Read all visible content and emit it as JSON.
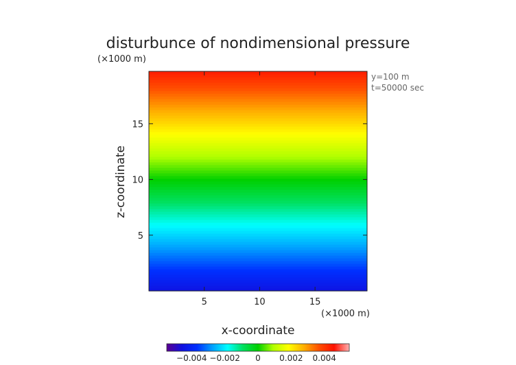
{
  "chart_data": {
    "type": "heatmap",
    "title": "disturbunce of nondimensional pressure",
    "xlabel": "x-coordinate",
    "ylabel": "z-coordinate",
    "x_unit": "(×1000 m)",
    "y_unit": "(×1000 m)",
    "annotations": [
      "y=100 m",
      "t=50000 sec"
    ],
    "xlim": [
      0,
      19.7
    ],
    "ylim": [
      0,
      19.7
    ],
    "x_ticks": [
      5,
      10,
      15
    ],
    "y_ticks": [
      5,
      10,
      15
    ],
    "field": {
      "description_of_values": "pressure disturbance varies with z only",
      "z_levels": [
        0,
        2,
        4,
        6,
        8,
        10,
        12,
        14,
        16,
        18,
        19.7
      ],
      "values": [
        -0.0045,
        -0.0036,
        -0.0027,
        -0.0018,
        -0.0009,
        0.0,
        0.0009,
        0.0018,
        0.0027,
        0.0036,
        0.0044
      ]
    },
    "colorbar": {
      "range": [
        -0.0055,
        0.0055
      ],
      "tick_values": [
        -0.004,
        -0.002,
        0,
        0.002,
        0.004
      ],
      "tick_labels": [
        "−0.004",
        "−0.002",
        "0",
        "0.002",
        "0.004"
      ]
    },
    "grid": false,
    "colors": {
      "scale": [
        "#5a0090",
        "#1010e0",
        "#0030ff",
        "#00a0ff",
        "#00ffff",
        "#00e060",
        "#00d000",
        "#b0ff00",
        "#ffff00",
        "#ffb000",
        "#ff5000",
        "#ff1000",
        "#ffb0b0"
      ]
    }
  }
}
